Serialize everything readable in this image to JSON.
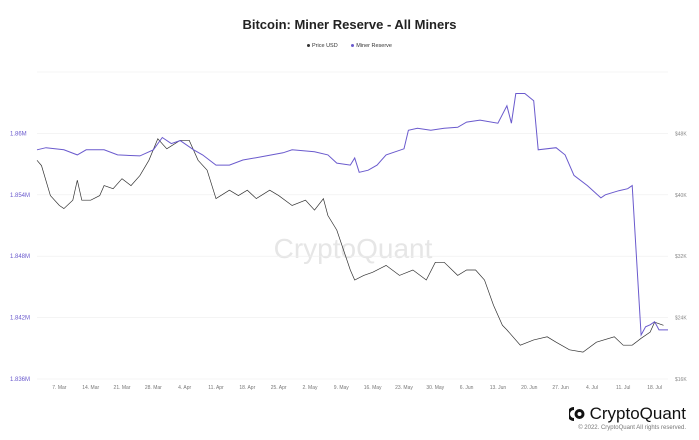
{
  "chart_data": {
    "type": "line",
    "title": "Bitcoin: Miner Reserve - All Miners",
    "xlim": [
      "2022-03-02",
      "2022-07-21"
    ],
    "x_ticks": [
      "7. Mar",
      "14. Mar",
      "21. Mar",
      "28. Mar",
      "4. Apr",
      "11. Apr",
      "18. Apr",
      "25. Apr",
      "2. May",
      "9. May",
      "16. May",
      "23. May",
      "30. May",
      "6. Jun",
      "13. Jun",
      "20. Jun",
      "27. Jun",
      "4. Jul",
      "11. Jul",
      "18. Jul"
    ],
    "x_tick_dates": [
      "2022-03-07",
      "2022-03-14",
      "2022-03-21",
      "2022-03-28",
      "2022-04-04",
      "2022-04-11",
      "2022-04-18",
      "2022-04-25",
      "2022-05-02",
      "2022-05-09",
      "2022-05-16",
      "2022-05-23",
      "2022-05-30",
      "2022-06-06",
      "2022-06-13",
      "2022-06-20",
      "2022-06-27",
      "2022-07-04",
      "2022-07-11",
      "2022-07-18"
    ],
    "y_left": {
      "ticks": [
        "1.836M",
        "1.842M",
        "1.848M",
        "1.854M",
        "1.86M"
      ],
      "values": [
        1.836,
        1.842,
        1.848,
        1.854,
        1.86
      ],
      "ylim": [
        1.836,
        1.866
      ],
      "color": "#6a5acd"
    },
    "y_right": {
      "ticks": [
        "$16K",
        "$24K",
        "$32K",
        "$40K",
        "$48K"
      ],
      "values": [
        16,
        24,
        32,
        40,
        48
      ],
      "ylim": [
        16,
        56
      ]
    },
    "grid": true,
    "legend_position": "top-center",
    "watermark": "CryptoQuant",
    "series": [
      {
        "name": "Price USD",
        "axis": "right",
        "color": "#333333",
        "points": [
          [
            "2022-03-02",
            44.5
          ],
          [
            "2022-03-03",
            43.8
          ],
          [
            "2022-03-05",
            39.9
          ],
          [
            "2022-03-07",
            38.6
          ],
          [
            "2022-03-08",
            38.2
          ],
          [
            "2022-03-10",
            39.3
          ],
          [
            "2022-03-11",
            41.9
          ],
          [
            "2022-03-12",
            39.3
          ],
          [
            "2022-03-14",
            39.3
          ],
          [
            "2022-03-16",
            39.9
          ],
          [
            "2022-03-17",
            41.2
          ],
          [
            "2022-03-19",
            40.8
          ],
          [
            "2022-03-21",
            42.1
          ],
          [
            "2022-03-23",
            41.2
          ],
          [
            "2022-03-25",
            42.5
          ],
          [
            "2022-03-27",
            44.5
          ],
          [
            "2022-03-29",
            47.3
          ],
          [
            "2022-03-31",
            46.0
          ],
          [
            "2022-04-03",
            47.1
          ],
          [
            "2022-04-05",
            47.1
          ],
          [
            "2022-04-07",
            44.5
          ],
          [
            "2022-04-09",
            43.2
          ],
          [
            "2022-04-11",
            39.5
          ],
          [
            "2022-04-14",
            40.6
          ],
          [
            "2022-04-16",
            39.9
          ],
          [
            "2022-04-18",
            40.6
          ],
          [
            "2022-04-20",
            39.5
          ],
          [
            "2022-04-23",
            40.6
          ],
          [
            "2022-04-25",
            39.9
          ],
          [
            "2022-04-28",
            38.6
          ],
          [
            "2022-05-01",
            39.3
          ],
          [
            "2022-05-03",
            38.0
          ],
          [
            "2022-05-05",
            39.5
          ],
          [
            "2022-05-06",
            37.3
          ],
          [
            "2022-05-08",
            35.4
          ],
          [
            "2022-05-11",
            30.2
          ],
          [
            "2022-05-12",
            28.9
          ],
          [
            "2022-05-14",
            29.5
          ],
          [
            "2022-05-16",
            29.9
          ],
          [
            "2022-05-19",
            30.8
          ],
          [
            "2022-05-22",
            29.5
          ],
          [
            "2022-05-25",
            30.2
          ],
          [
            "2022-05-28",
            28.9
          ],
          [
            "2022-05-30",
            31.2
          ],
          [
            "2022-06-01",
            31.2
          ],
          [
            "2022-06-04",
            29.5
          ],
          [
            "2022-06-06",
            30.2
          ],
          [
            "2022-06-08",
            30.2
          ],
          [
            "2022-06-10",
            28.9
          ],
          [
            "2022-06-12",
            25.6
          ],
          [
            "2022-06-14",
            23.0
          ],
          [
            "2022-06-15",
            22.4
          ],
          [
            "2022-06-18",
            20.4
          ],
          [
            "2022-06-21",
            21.1
          ],
          [
            "2022-06-24",
            21.5
          ],
          [
            "2022-06-26",
            20.8
          ],
          [
            "2022-06-29",
            19.8
          ],
          [
            "2022-07-02",
            19.5
          ],
          [
            "2022-07-05",
            20.8
          ],
          [
            "2022-07-09",
            21.5
          ],
          [
            "2022-07-11",
            20.4
          ],
          [
            "2022-07-13",
            20.4
          ],
          [
            "2022-07-15",
            21.3
          ],
          [
            "2022-07-17",
            22.1
          ],
          [
            "2022-07-18",
            23.4
          ],
          [
            "2022-07-20",
            23.0
          ]
        ]
      },
      {
        "name": "Miner Reserve",
        "axis": "left",
        "color": "#6a5acd",
        "points": [
          [
            "2022-03-02",
            1.8584
          ],
          [
            "2022-03-04",
            1.8586
          ],
          [
            "2022-03-08",
            1.8584
          ],
          [
            "2022-03-11",
            1.8579
          ],
          [
            "2022-03-13",
            1.8584
          ],
          [
            "2022-03-17",
            1.8584
          ],
          [
            "2022-03-20",
            1.8579
          ],
          [
            "2022-03-25",
            1.8578
          ],
          [
            "2022-03-28",
            1.8584
          ],
          [
            "2022-03-30",
            1.8596
          ],
          [
            "2022-04-01",
            1.859
          ],
          [
            "2022-04-03",
            1.8593
          ],
          [
            "2022-04-06",
            1.8584
          ],
          [
            "2022-04-08",
            1.8579
          ],
          [
            "2022-04-11",
            1.8569
          ],
          [
            "2022-04-14",
            1.8569
          ],
          [
            "2022-04-17",
            1.8574
          ],
          [
            "2022-04-21",
            1.8577
          ],
          [
            "2022-04-26",
            1.8581
          ],
          [
            "2022-04-28",
            1.8584
          ],
          [
            "2022-05-03",
            1.8582
          ],
          [
            "2022-05-06",
            1.8579
          ],
          [
            "2022-05-08",
            1.8571
          ],
          [
            "2022-05-11",
            1.8569
          ],
          [
            "2022-05-12",
            1.8576
          ],
          [
            "2022-05-13",
            1.8562
          ],
          [
            "2022-05-15",
            1.8564
          ],
          [
            "2022-05-17",
            1.8569
          ],
          [
            "2022-05-19",
            1.8579
          ],
          [
            "2022-05-23",
            1.8585
          ],
          [
            "2022-05-24",
            1.8603
          ],
          [
            "2022-05-26",
            1.8605
          ],
          [
            "2022-05-29",
            1.8603
          ],
          [
            "2022-06-01",
            1.8605
          ],
          [
            "2022-06-04",
            1.8606
          ],
          [
            "2022-06-06",
            1.8611
          ],
          [
            "2022-06-09",
            1.8613
          ],
          [
            "2022-06-13",
            1.861
          ],
          [
            "2022-06-15",
            1.8627
          ],
          [
            "2022-06-16",
            1.861
          ],
          [
            "2022-06-17",
            1.8639
          ],
          [
            "2022-06-19",
            1.8639
          ],
          [
            "2022-06-21",
            1.8632
          ],
          [
            "2022-06-22",
            1.8584
          ],
          [
            "2022-06-26",
            1.8586
          ],
          [
            "2022-06-28",
            1.8579
          ],
          [
            "2022-06-30",
            1.8559
          ],
          [
            "2022-07-03",
            1.8549
          ],
          [
            "2022-07-06",
            1.8537
          ],
          [
            "2022-07-07",
            1.854
          ],
          [
            "2022-07-10",
            1.8544
          ],
          [
            "2022-07-12",
            1.8546
          ],
          [
            "2022-07-13",
            1.8549
          ],
          [
            "2022-07-15",
            1.8403
          ],
          [
            "2022-07-16",
            1.8411
          ],
          [
            "2022-07-17",
            1.8413
          ],
          [
            "2022-07-18",
            1.8416
          ],
          [
            "2022-07-19",
            1.8408
          ],
          [
            "2022-07-21",
            1.8408
          ]
        ]
      }
    ]
  },
  "footer": {
    "brand": "CryptoQuant",
    "copyright": "© 2022. CryptoQuant All rights reserved."
  }
}
